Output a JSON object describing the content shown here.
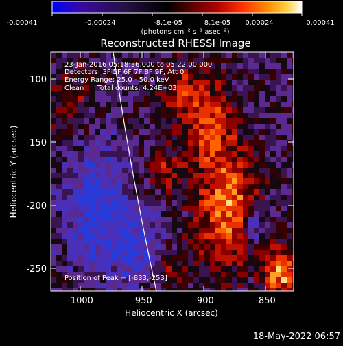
{
  "colorbar": {
    "tick_labels": [
      "-0.00041",
      "-0.00024",
      "-8.1e-05",
      "8.1e-05",
      "0.00024",
      "0.00041"
    ],
    "units_label": "(photons cm⁻² s⁻¹ asec⁻²)",
    "colormap": [
      "#0000ff",
      "#3a0aa0",
      "#241040",
      "#000000",
      "#5a0000",
      "#b00000",
      "#ff3000",
      "#ff8a00",
      "#ffd040",
      "#ffffff"
    ]
  },
  "plot": {
    "title": "Reconstructed RHESSI Image",
    "xlabel": "Heliocentric X (arcsec)",
    "ylabel": "Heliocentric Y (arcsec)",
    "x_ticks": [
      "-1000",
      "-950",
      "-900",
      "-850"
    ],
    "y_ticks": [
      "-100",
      "-150",
      "-200",
      "-250"
    ],
    "annotations": {
      "time": "23-Jan-2016 05:18:36.000 to 05:22:00.000",
      "detectors": "Detectors: 3F 5F 6F 7F 8F 9F, Att 0",
      "energy": "Energy Range: 25.0 - 50.0 keV",
      "clean": "Clean      Total counts: 4.24E+03",
      "peak": "Position of Peak = [-833,-253]"
    }
  },
  "footer": {
    "timestamp": "18-May-2022 06:57"
  },
  "chart_data": {
    "type": "heatmap",
    "title": "Reconstructed RHESSI Image",
    "xlabel": "Heliocentric X (arcsec)",
    "ylabel": "Heliocentric Y (arcsec)",
    "xlim": [
      -1020,
      -828
    ],
    "ylim": [
      -270,
      -82
    ],
    "color_range": [
      -0.00041,
      0.00041
    ],
    "peak_position": [
      -833,
      -253
    ],
    "total_counts": 4240
  }
}
